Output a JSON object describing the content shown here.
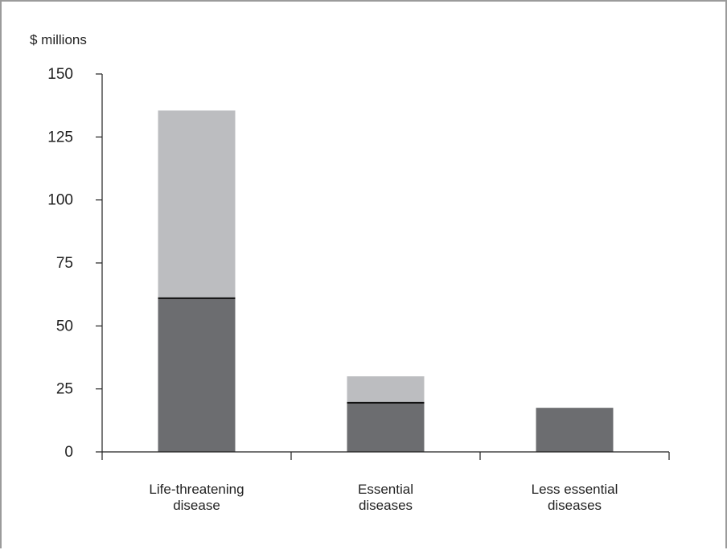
{
  "chart_data": {
    "type": "bar",
    "stacked": true,
    "unit_label": "$ millions",
    "categories": [
      [
        "Life-threatening",
        "disease"
      ],
      [
        "Essential",
        "diseases"
      ],
      [
        "Less essential",
        "diseases"
      ]
    ],
    "series": [
      {
        "values": [
          61,
          19.5,
          17.5
        ],
        "color": "#6c6d70"
      },
      {
        "values": [
          74.5,
          10.5,
          0
        ],
        "color": "#bcbdc0"
      }
    ],
    "ylim": [
      0,
      150
    ],
    "yticks": [
      0,
      25,
      50,
      75,
      100,
      125,
      150
    ],
    "legend": "none",
    "grid": false
  }
}
